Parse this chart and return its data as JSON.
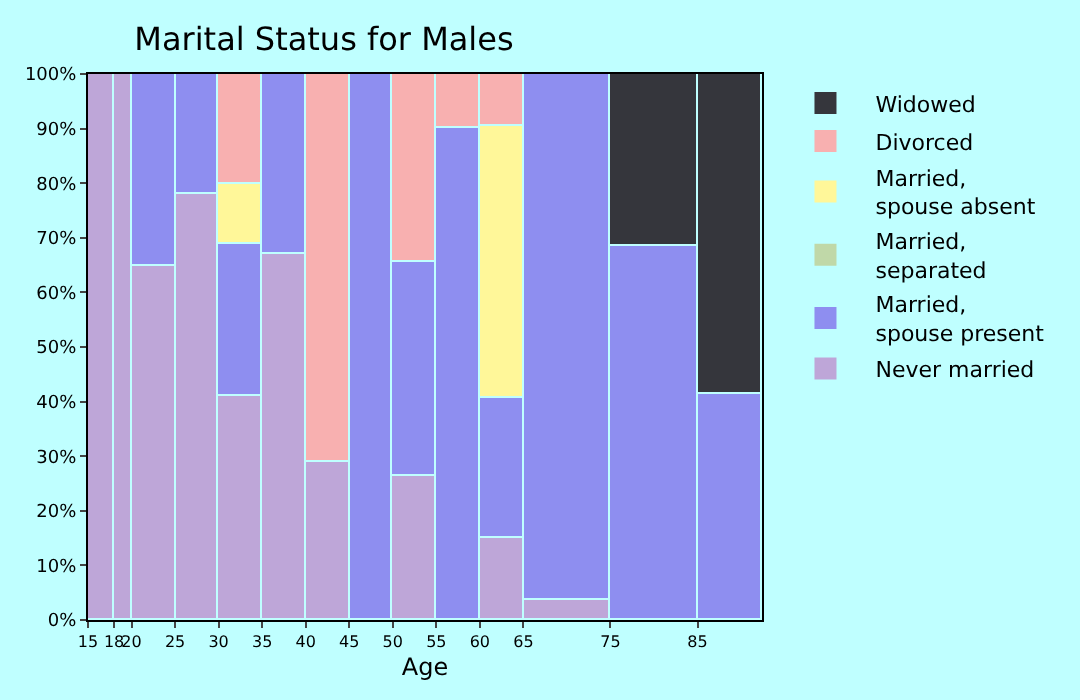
{
  "chart_data": {
    "type": "bar",
    "title": "Marital Status for Males",
    "xlabel": "Age",
    "stacked": true,
    "x": [
      16.5,
      19,
      22.5,
      27.5,
      32.5,
      37.5,
      42.5,
      47.5,
      52.5,
      57.5,
      62.5,
      70,
      80,
      88.7
    ],
    "series": [
      {
        "name": "Never married",
        "color": "#bea6d8",
        "values": [
          100,
          100,
          65,
          78,
          41,
          67,
          29,
          null,
          26.5,
          null,
          15,
          3.5,
          null,
          null
        ]
      },
      {
        "name": "Married, spouse present",
        "color": "#8e8ef0",
        "values": [
          null,
          null,
          35,
          22,
          28,
          33,
          null,
          100,
          39,
          90,
          25.5,
          96.5,
          68.5,
          41.5
        ]
      },
      {
        "name": "Married, separated",
        "color": "#c0d8a8",
        "values": [
          null,
          null,
          null,
          null,
          null,
          null,
          null,
          null,
          null,
          null,
          null,
          null,
          null,
          null
        ]
      },
      {
        "name": "Married, spouse absent",
        "color": "#fff799",
        "values": [
          null,
          null,
          null,
          null,
          11,
          null,
          null,
          null,
          null,
          null,
          50,
          null,
          null,
          null
        ]
      },
      {
        "name": "Divorced",
        "color": "#f8b0b0",
        "values": [
          null,
          null,
          null,
          null,
          20,
          null,
          71,
          null,
          34.5,
          10,
          9.5,
          null,
          null,
          null
        ]
      },
      {
        "name": "Widowed",
        "color": "#35363c",
        "values": [
          null,
          null,
          null,
          null,
          null,
          null,
          null,
          null,
          null,
          null,
          null,
          null,
          31.5,
          58.5
        ]
      }
    ],
    "xlim": [
      15,
      92.4
    ],
    "xticks": [
      15,
      18,
      20,
      25,
      30,
      35,
      40,
      45,
      50,
      55,
      60,
      65,
      75,
      85
    ],
    "ylim": [
      0,
      100
    ],
    "yticks": [
      {
        "value": 0,
        "label": "0%"
      },
      {
        "value": 10,
        "label": "10%"
      },
      {
        "value": 20,
        "label": "20%"
      },
      {
        "value": 30,
        "label": "30%"
      },
      {
        "value": 40,
        "label": "40%"
      },
      {
        "value": 50,
        "label": "50%"
      },
      {
        "value": 60,
        "label": "60%"
      },
      {
        "value": 70,
        "label": "70%"
      },
      {
        "value": 80,
        "label": "80%"
      },
      {
        "value": 90,
        "label": "90%"
      },
      {
        "value": 100,
        "label": "100%"
      }
    ],
    "legend": "right"
  }
}
